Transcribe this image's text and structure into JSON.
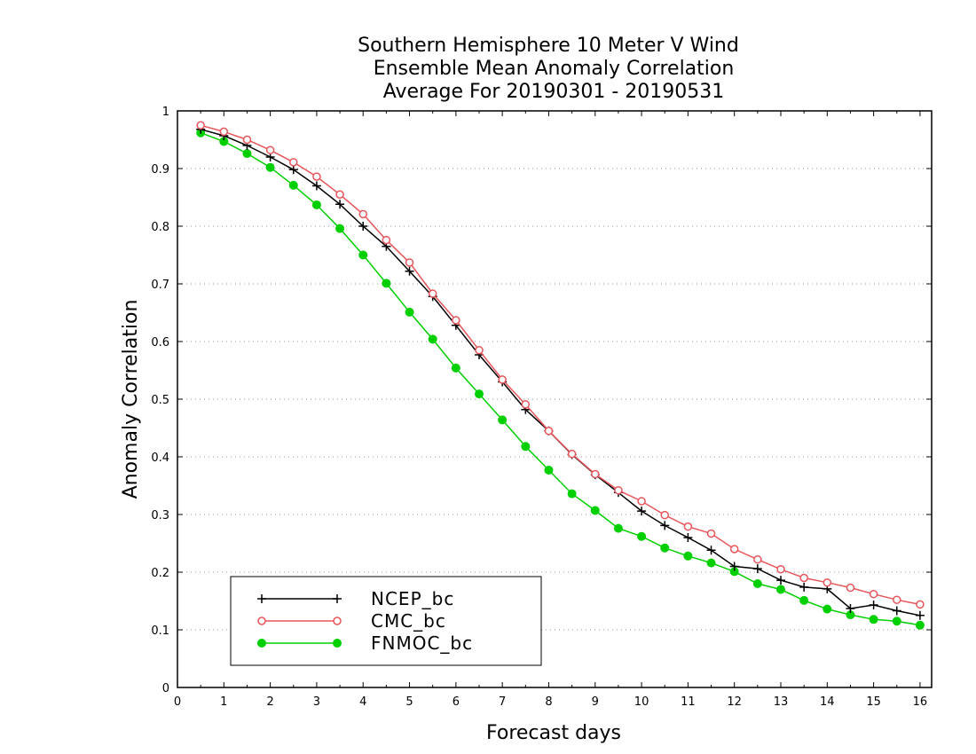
{
  "chart_data": {
    "type": "line",
    "title_lines": [
      "Southern Hemisphere 10 Meter V Wind",
      "Ensemble Mean Anomaly Correlation",
      "Average For 20190301 - 20190531"
    ],
    "xlabel": "Forecast days",
    "ylabel": "Anomaly Correlation",
    "xlim": [
      0,
      16.25
    ],
    "ylim": [
      0,
      1
    ],
    "xticks": [
      0,
      1,
      2,
      3,
      4,
      5,
      6,
      7,
      8,
      9,
      10,
      11,
      12,
      13,
      14,
      15,
      16
    ],
    "yticks": [
      0,
      0.1,
      0.2,
      0.3,
      0.4,
      0.5,
      0.6,
      0.7,
      0.8,
      0.9,
      1
    ],
    "grid": "horizontal dotted",
    "legend_position": "bottom-left",
    "x": [
      0.5,
      1,
      1.5,
      2,
      2.5,
      3,
      3.5,
      4,
      4.5,
      5,
      5.5,
      6,
      6.5,
      7,
      7.5,
      8,
      8.5,
      9,
      9.5,
      10,
      10.5,
      11,
      11.5,
      12,
      12.5,
      13,
      13.5,
      14,
      14.5,
      15,
      15.5,
      16
    ],
    "series": [
      {
        "name": "NCEP_bc",
        "color": "#000000",
        "marker": "plus",
        "values": [
          0.968,
          0.957,
          0.94,
          0.92,
          0.898,
          0.87,
          0.838,
          0.8,
          0.765,
          0.722,
          0.678,
          0.628,
          0.577,
          0.53,
          0.482,
          0.445,
          0.404,
          0.369,
          0.338,
          0.306,
          0.281,
          0.26,
          0.238,
          0.21,
          0.206,
          0.186,
          0.174,
          0.171,
          0.137,
          0.143,
          0.133,
          0.125
        ]
      },
      {
        "name": "CMC_bc",
        "color": "#e8555a",
        "marker": "open-circle",
        "values": [
          0.975,
          0.964,
          0.95,
          0.932,
          0.911,
          0.886,
          0.855,
          0.821,
          0.776,
          0.737,
          0.683,
          0.637,
          0.585,
          0.534,
          0.491,
          0.445,
          0.405,
          0.37,
          0.342,
          0.323,
          0.299,
          0.279,
          0.267,
          0.24,
          0.222,
          0.205,
          0.19,
          0.182,
          0.173,
          0.162,
          0.152,
          0.144
        ]
      },
      {
        "name": "FNMOC_bc",
        "color": "#00d000",
        "marker": "filled-circle",
        "values": [
          0.962,
          0.947,
          0.926,
          0.902,
          0.871,
          0.837,
          0.796,
          0.75,
          0.701,
          0.651,
          0.604,
          0.554,
          0.509,
          0.464,
          0.418,
          0.377,
          0.336,
          0.307,
          0.276,
          0.262,
          0.242,
          0.228,
          0.216,
          0.201,
          0.18,
          0.17,
          0.151,
          0.136,
          0.126,
          0.118,
          0.115,
          0.108
        ]
      }
    ]
  }
}
